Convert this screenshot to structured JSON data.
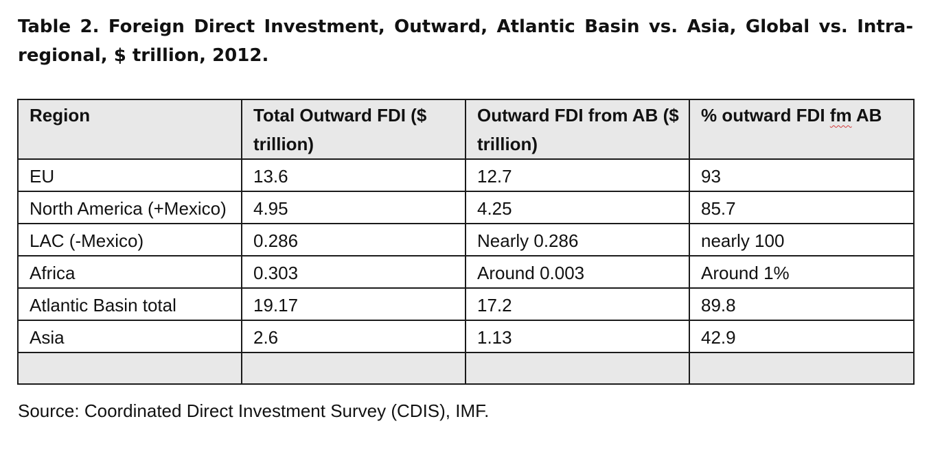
{
  "title": "Table 2. Foreign Direct Investment, Outward, Atlantic Basin vs. Asia, Global vs. Intra-regional, $ trillion, 2012.",
  "table": {
    "headers": {
      "region": "Region",
      "total": "Total Outward FDI ($ trillion)",
      "from_ab": "Outward FDI from AB ($ trillion)",
      "pct_prefix": "% outward FDI ",
      "pct_fm": "fm",
      "pct_suffix": " AB"
    },
    "rows": [
      {
        "region": "EU",
        "total": "13.6",
        "from_ab": "12.7",
        "pct": "93"
      },
      {
        "region": "North America (+Mexico)",
        "total": "4.95",
        "from_ab": "4.25",
        "pct": "85.7"
      },
      {
        "region": "LAC (-Mexico)",
        "total": "0.286",
        "from_ab": "Nearly 0.286",
        "pct": "nearly 100"
      },
      {
        "region": "Africa",
        "total": "0.303",
        "from_ab": "Around 0.003",
        "pct": "Around 1%"
      },
      {
        "region": "Atlantic Basin total",
        "total": "19.17",
        "from_ab": "17.2",
        "pct": "89.8"
      },
      {
        "region": "Asia",
        "total": "2.6",
        "from_ab": "1.13",
        "pct": "42.9"
      }
    ]
  },
  "source": "Source: Coordinated Direct Investment Survey (CDIS), IMF."
}
